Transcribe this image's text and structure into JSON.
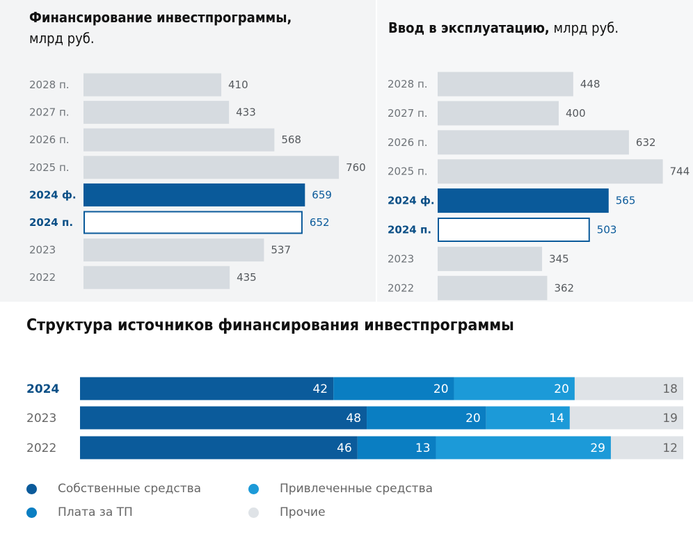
{
  "chart_data": [
    {
      "type": "bar",
      "orientation": "horizontal",
      "title": "Финансирование инвестпрограммы,",
      "unit": "млрд руб.",
      "categories": [
        "2028 п.",
        "2027 п.",
        "2026 п.",
        "2025 п.",
        "2024 ф.",
        "2024 п.",
        "2023",
        "2022"
      ],
      "values": [
        410,
        433,
        568,
        760,
        659,
        652,
        537,
        435
      ],
      "highlight": [
        "none",
        "none",
        "none",
        "none",
        "filled",
        "outlined",
        "none",
        "none"
      ]
    },
    {
      "type": "bar",
      "orientation": "horizontal",
      "title": "Ввод в эксплуатацию,",
      "unit": "млрд руб.",
      "categories": [
        "2028 п.",
        "2027 п.",
        "2026 п.",
        "2025 п.",
        "2024 ф.",
        "2024 п.",
        "2023",
        "2022"
      ],
      "values": [
        448,
        400,
        632,
        744,
        565,
        503,
        345,
        362
      ],
      "highlight": [
        "none",
        "none",
        "none",
        "none",
        "filled",
        "outlined",
        "none",
        "none"
      ]
    },
    {
      "type": "bar",
      "orientation": "horizontal",
      "stacked": true,
      "title": "Структура источников финансирования инвестпрограммы",
      "categories": [
        "2024",
        "2023",
        "2022"
      ],
      "highlight_category": "2024",
      "series": [
        {
          "name": "Собственные средства",
          "values": [
            42,
            48,
            46
          ],
          "color": "#0b5b9b"
        },
        {
          "name": "Плата за ТП",
          "values": [
            20,
            20,
            13
          ],
          "color": "#0a7ec2"
        },
        {
          "name": "Привлеченные средства",
          "values": [
            20,
            14,
            29
          ],
          "color": "#1c9ad8"
        },
        {
          "name": "Прочие",
          "values": [
            18,
            19,
            12
          ],
          "color": "#dfe3e7"
        }
      ],
      "legend_position": "bottom-left"
    }
  ],
  "colors": {
    "bar_gray": "#d6dbe0",
    "bar_highlight": "#0a5a9a",
    "text_highlight": "#0a4f86"
  }
}
